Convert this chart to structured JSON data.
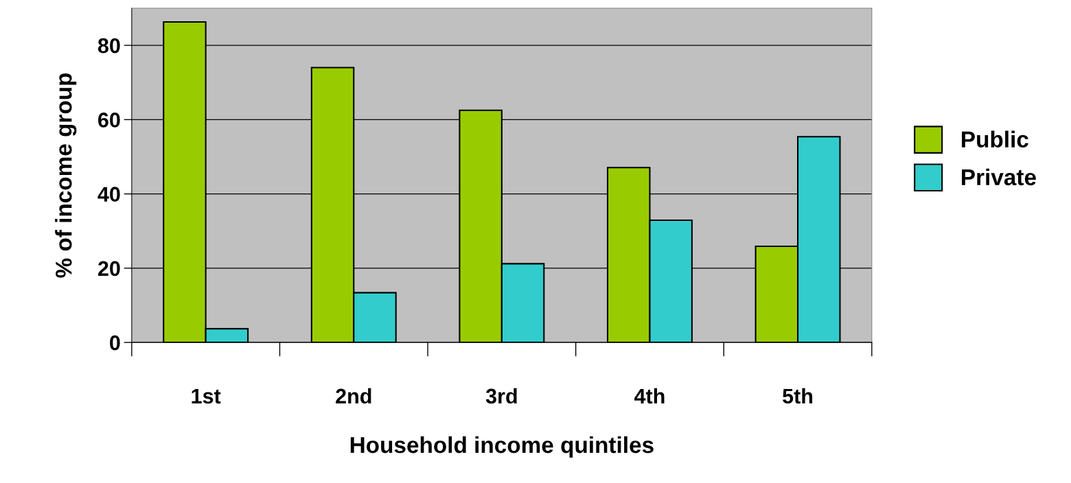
{
  "chart_data": {
    "type": "bar",
    "xlabel": "Household income quintiles",
    "ylabel": "% of income group",
    "categories": [
      "1st",
      "2nd",
      "3rd",
      "4th",
      "5th"
    ],
    "series": [
      {
        "name": "Public",
        "color": "#99cc00",
        "values": [
          86.3,
          74.0,
          62.5,
          47.1,
          25.9
        ]
      },
      {
        "name": "Private",
        "color": "#33cccc",
        "values": [
          3.7,
          13.4,
          21.2,
          32.9,
          55.4
        ]
      }
    ],
    "ylim": [
      0,
      90
    ],
    "yticks": [
      0,
      20,
      40,
      60,
      80
    ],
    "grid": "y",
    "legend": "right"
  }
}
